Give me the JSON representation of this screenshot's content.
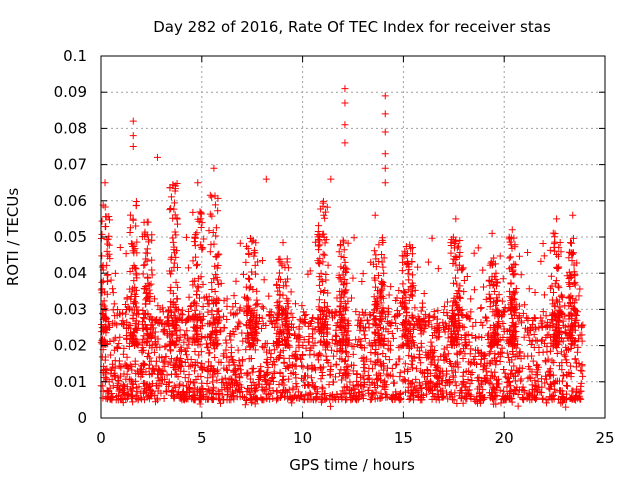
{
  "chart_data": {
    "type": "scatter",
    "title": "Day 282 of 2016, Rate Of TEC Index for receiver stas",
    "xlabel": "GPS time / hours",
    "ylabel": "ROTI / TECUs",
    "xlim": [
      0,
      25
    ],
    "ylim": [
      0,
      0.1
    ],
    "xticks": [
      0,
      5,
      10,
      15,
      20,
      25
    ],
    "xtick_labels": [
      "0",
      "5",
      "10",
      "15",
      "20",
      "25"
    ],
    "yticks": [
      0,
      0.01,
      0.02,
      0.03,
      0.04,
      0.05,
      0.06,
      0.07,
      0.08,
      0.09,
      0.1
    ],
    "ytick_labels": [
      "0",
      "0.01",
      "0.02",
      "0.03",
      "0.04",
      "0.05",
      "0.06",
      "0.07",
      "0.08",
      "0.09",
      "0.1"
    ],
    "grid": true,
    "marker": "+",
    "marker_color": "#ff0000",
    "data_range_x": [
      0,
      23.9
    ],
    "baseline_y_range": [
      0.005,
      0.03
    ],
    "notable_points": [
      {
        "x": 1.6,
        "y": 0.082
      },
      {
        "x": 1.6,
        "y": 0.078
      },
      {
        "x": 1.6,
        "y": 0.075
      },
      {
        "x": 2.8,
        "y": 0.072
      },
      {
        "x": 5.6,
        "y": 0.069
      },
      {
        "x": 12.1,
        "y": 0.091
      },
      {
        "x": 12.1,
        "y": 0.087
      },
      {
        "x": 12.1,
        "y": 0.081
      },
      {
        "x": 12.1,
        "y": 0.076
      },
      {
        "x": 14.1,
        "y": 0.089
      },
      {
        "x": 14.1,
        "y": 0.084
      },
      {
        "x": 14.1,
        "y": 0.079
      },
      {
        "x": 14.1,
        "y": 0.073
      },
      {
        "x": 14.1,
        "y": 0.069
      },
      {
        "x": 14.1,
        "y": 0.065
      },
      {
        "x": 11.4,
        "y": 0.066
      },
      {
        "x": 8.2,
        "y": 0.066
      },
      {
        "x": 0.2,
        "y": 0.065
      },
      {
        "x": 4.8,
        "y": 0.065
      },
      {
        "x": 13.6,
        "y": 0.056
      },
      {
        "x": 17.6,
        "y": 0.055
      },
      {
        "x": 22.6,
        "y": 0.055
      },
      {
        "x": 23.4,
        "y": 0.056
      },
      {
        "x": 19.4,
        "y": 0.051
      },
      {
        "x": 20.4,
        "y": 0.052
      }
    ],
    "clusters": [
      {
        "x": 0.2,
        "max": 0.06,
        "width": 0.5
      },
      {
        "x": 1.6,
        "max": 0.06,
        "width": 0.4
      },
      {
        "x": 2.3,
        "max": 0.055,
        "width": 0.5
      },
      {
        "x": 3.6,
        "max": 0.065,
        "width": 0.4
      },
      {
        "x": 4.8,
        "max": 0.058,
        "width": 0.5
      },
      {
        "x": 5.6,
        "max": 0.062,
        "width": 0.5
      },
      {
        "x": 7.5,
        "max": 0.05,
        "width": 0.6
      },
      {
        "x": 9.0,
        "max": 0.045,
        "width": 0.6
      },
      {
        "x": 11.0,
        "max": 0.06,
        "width": 0.5
      },
      {
        "x": 12.0,
        "max": 0.05,
        "width": 0.4
      },
      {
        "x": 13.8,
        "max": 0.05,
        "width": 0.5
      },
      {
        "x": 15.2,
        "max": 0.048,
        "width": 0.6
      },
      {
        "x": 17.6,
        "max": 0.05,
        "width": 0.5
      },
      {
        "x": 19.5,
        "max": 0.045,
        "width": 0.5
      },
      {
        "x": 20.4,
        "max": 0.05,
        "width": 0.4
      },
      {
        "x": 22.6,
        "max": 0.052,
        "width": 0.5
      },
      {
        "x": 23.4,
        "max": 0.05,
        "width": 0.4
      }
    ]
  }
}
